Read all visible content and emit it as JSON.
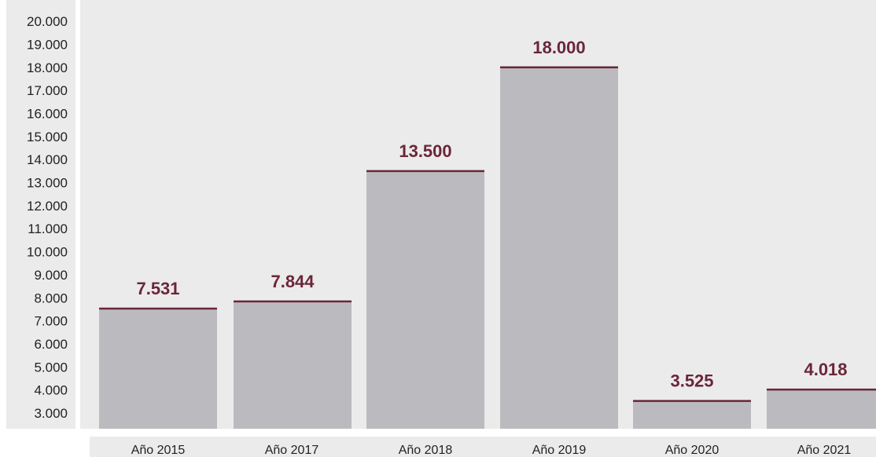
{
  "colors": {
    "background": "#ffffff",
    "panel": "#ebebeb",
    "bar": "#bbbbbf",
    "accent": "#6b2639",
    "tick_text": "#222222"
  },
  "chart_data": {
    "type": "bar",
    "title": "",
    "xlabel": "",
    "ylabel": "",
    "categories": [
      "Año 2015",
      "Año 2017",
      "Año 2018",
      "Año 2019",
      "Año 2020",
      "Año 2021"
    ],
    "values": [
      7531,
      7844,
      13500,
      18000,
      3525,
      4018
    ],
    "value_labels": [
      "7.531",
      "7.844",
      "13.500",
      "18.000",
      "3.525",
      "4.018"
    ],
    "ylim": [
      2400,
      20600
    ],
    "y_ticks": [
      3000,
      4000,
      5000,
      6000,
      7000,
      8000,
      9000,
      10000,
      11000,
      12000,
      13000,
      14000,
      15000,
      16000,
      17000,
      18000,
      19000,
      20000
    ],
    "y_tick_labels": [
      "3.000",
      "4.000",
      "5.000",
      "6.000",
      "7.000",
      "8.000",
      "9.000",
      "10.000",
      "11.000",
      "12.000",
      "13.000",
      "14.000",
      "15.000",
      "16.000",
      "17.000",
      "18.000",
      "19.000",
      "20.000"
    ],
    "grid": false,
    "legend": "none"
  }
}
